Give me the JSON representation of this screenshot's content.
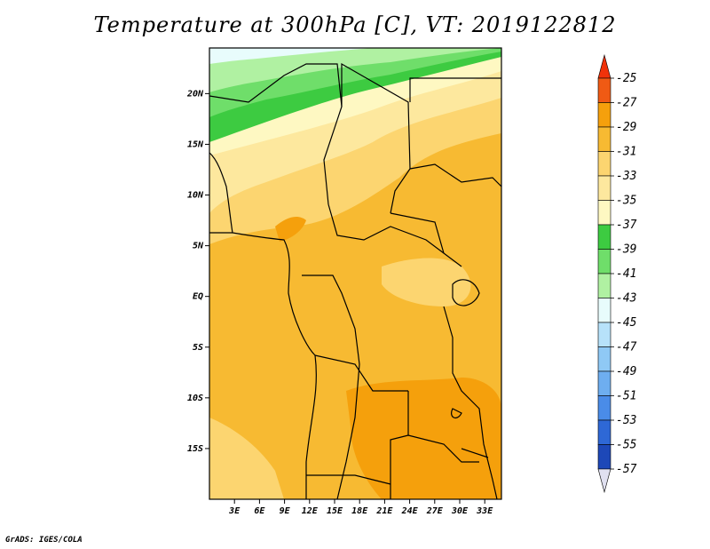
{
  "title": "Temperature at 300hPa [C], VT: 2019122812",
  "credit": "GrADS: IGES/COLA",
  "map": {
    "lat_labels": [
      "20N",
      "15N",
      "10N",
      "5N",
      "EQ",
      "5S",
      "10S",
      "15S"
    ],
    "lon_labels": [
      "3E",
      "6E",
      "9E",
      "12E",
      "15E",
      "18E",
      "21E",
      "24E",
      "27E",
      "30E",
      "33E"
    ],
    "lat_range": [
      -20,
      24.5
    ],
    "lon_range": [
      0,
      35
    ]
  },
  "colorbar": {
    "labels": [
      "-25",
      "-27",
      "-29",
      "-31",
      "-33",
      "-35",
      "-37",
      "-39",
      "-41",
      "-43",
      "-45",
      "-47",
      "-49",
      "-51",
      "-53",
      "-55",
      "-57"
    ],
    "colors": [
      "#f05a14",
      "#f5a00c",
      "#f7ba32",
      "#fcd570",
      "#fde89e",
      "#fef8c2",
      "#3dcb41",
      "#6fde6a",
      "#b0f1a2",
      "#e8fcfc",
      "#b7e2fa",
      "#8fc9f5",
      "#6eaef0",
      "#4a8ce8",
      "#2e68d6",
      "#1d48b8",
      "#0a1d78"
    ],
    "top_color": "#f0320a",
    "bottom_color": "#e0e0f0"
  }
}
